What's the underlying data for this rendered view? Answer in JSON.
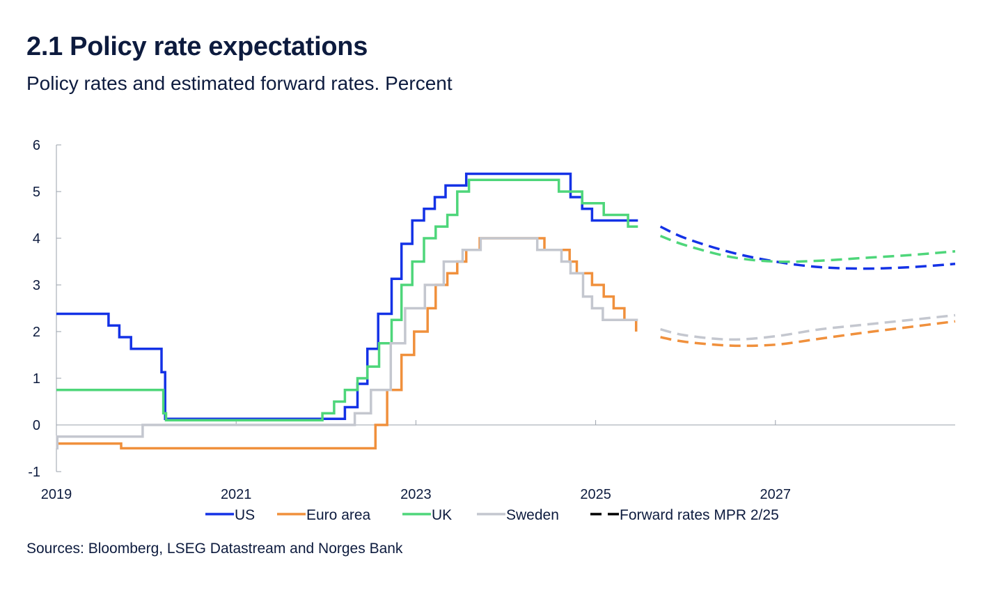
{
  "title": "2.1 Policy rate expectations",
  "subtitle": "Policy rates and estimated forward rates. Percent",
  "source": "Sources: Bloomberg, LSEG  Datastream and Norges Bank",
  "chart_data": {
    "type": "line",
    "ylim": [
      -1,
      6
    ],
    "xlim": [
      2019.0,
      2029.0
    ],
    "y_ticks": [
      "-1",
      "0",
      "1",
      "2",
      "3",
      "4",
      "5",
      "6"
    ],
    "x_ticks": [
      {
        "label": "2019",
        "value": 2019
      },
      {
        "label": "2021",
        "value": 2021
      },
      {
        "label": "2023",
        "value": 2023
      },
      {
        "label": "2025",
        "value": 2025
      },
      {
        "label": "2027",
        "value": 2027
      }
    ],
    "series": [
      {
        "name": "US",
        "color": "#1432e6",
        "style": "step",
        "points": [
          [
            2019.0,
            2.38
          ],
          [
            2019.58,
            2.38
          ],
          [
            2019.58,
            2.13
          ],
          [
            2019.7,
            2.13
          ],
          [
            2019.7,
            1.88
          ],
          [
            2019.83,
            1.88
          ],
          [
            2019.83,
            1.63
          ],
          [
            2020.17,
            1.63
          ],
          [
            2020.17,
            1.13
          ],
          [
            2020.21,
            1.13
          ],
          [
            2020.21,
            0.13
          ],
          [
            2022.21,
            0.13
          ],
          [
            2022.21,
            0.38
          ],
          [
            2022.35,
            0.38
          ],
          [
            2022.35,
            0.88
          ],
          [
            2022.46,
            0.88
          ],
          [
            2022.46,
            1.63
          ],
          [
            2022.58,
            1.63
          ],
          [
            2022.58,
            2.38
          ],
          [
            2022.73,
            2.38
          ],
          [
            2022.73,
            3.13
          ],
          [
            2022.84,
            3.13
          ],
          [
            2022.84,
            3.88
          ],
          [
            2022.96,
            3.88
          ],
          [
            2022.96,
            4.38
          ],
          [
            2023.09,
            4.38
          ],
          [
            2023.09,
            4.63
          ],
          [
            2023.21,
            4.63
          ],
          [
            2023.21,
            4.88
          ],
          [
            2023.33,
            4.88
          ],
          [
            2023.33,
            5.13
          ],
          [
            2023.56,
            5.13
          ],
          [
            2023.56,
            5.38
          ],
          [
            2024.72,
            5.38
          ],
          [
            2024.72,
            4.88
          ],
          [
            2024.85,
            4.88
          ],
          [
            2024.85,
            4.63
          ],
          [
            2024.96,
            4.63
          ],
          [
            2024.96,
            4.38
          ],
          [
            2025.47,
            4.38
          ]
        ]
      },
      {
        "name": "Euro area",
        "color": "#f0903c",
        "style": "step",
        "points": [
          [
            2019.0,
            -0.4
          ],
          [
            2019.72,
            -0.4
          ],
          [
            2019.72,
            -0.5
          ],
          [
            2022.55,
            -0.5
          ],
          [
            2022.55,
            0.0
          ],
          [
            2022.68,
            0.0
          ],
          [
            2022.68,
            0.75
          ],
          [
            2022.84,
            0.75
          ],
          [
            2022.84,
            1.5
          ],
          [
            2022.98,
            1.5
          ],
          [
            2022.98,
            2.0
          ],
          [
            2023.13,
            2.0
          ],
          [
            2023.13,
            2.5
          ],
          [
            2023.22,
            2.5
          ],
          [
            2023.22,
            3.0
          ],
          [
            2023.35,
            3.0
          ],
          [
            2023.35,
            3.25
          ],
          [
            2023.46,
            3.25
          ],
          [
            2023.46,
            3.5
          ],
          [
            2023.56,
            3.5
          ],
          [
            2023.56,
            3.75
          ],
          [
            2023.71,
            3.75
          ],
          [
            2023.71,
            4.0
          ],
          [
            2024.43,
            4.0
          ],
          [
            2024.43,
            3.75
          ],
          [
            2024.71,
            3.75
          ],
          [
            2024.71,
            3.5
          ],
          [
            2024.79,
            3.5
          ],
          [
            2024.79,
            3.25
          ],
          [
            2024.96,
            3.25
          ],
          [
            2024.96,
            3.0
          ],
          [
            2025.09,
            3.0
          ],
          [
            2025.09,
            2.75
          ],
          [
            2025.2,
            2.75
          ],
          [
            2025.2,
            2.5
          ],
          [
            2025.32,
            2.5
          ],
          [
            2025.32,
            2.25
          ],
          [
            2025.45,
            2.25
          ],
          [
            2025.45,
            2.0
          ]
        ]
      },
      {
        "name": "UK",
        "color": "#4ed67a",
        "style": "step",
        "points": [
          [
            2019.0,
            0.75
          ],
          [
            2020.19,
            0.75
          ],
          [
            2020.19,
            0.25
          ],
          [
            2020.22,
            0.25
          ],
          [
            2020.22,
            0.1
          ],
          [
            2021.96,
            0.1
          ],
          [
            2021.96,
            0.25
          ],
          [
            2022.09,
            0.25
          ],
          [
            2022.09,
            0.5
          ],
          [
            2022.21,
            0.5
          ],
          [
            2022.21,
            0.75
          ],
          [
            2022.35,
            0.75
          ],
          [
            2022.35,
            1.0
          ],
          [
            2022.46,
            1.0
          ],
          [
            2022.46,
            1.25
          ],
          [
            2022.59,
            1.25
          ],
          [
            2022.59,
            1.75
          ],
          [
            2022.73,
            1.75
          ],
          [
            2022.73,
            2.25
          ],
          [
            2022.84,
            2.25
          ],
          [
            2022.84,
            3.0
          ],
          [
            2022.96,
            3.0
          ],
          [
            2022.96,
            3.5
          ],
          [
            2023.09,
            3.5
          ],
          [
            2023.09,
            4.0
          ],
          [
            2023.22,
            4.0
          ],
          [
            2023.22,
            4.25
          ],
          [
            2023.35,
            4.25
          ],
          [
            2023.35,
            4.5
          ],
          [
            2023.46,
            4.5
          ],
          [
            2023.46,
            5.0
          ],
          [
            2023.59,
            5.0
          ],
          [
            2023.59,
            5.25
          ],
          [
            2024.59,
            5.25
          ],
          [
            2024.59,
            5.0
          ],
          [
            2024.85,
            5.0
          ],
          [
            2024.85,
            4.75
          ],
          [
            2025.09,
            4.75
          ],
          [
            2025.09,
            4.5
          ],
          [
            2025.36,
            4.5
          ],
          [
            2025.36,
            4.25
          ],
          [
            2025.47,
            4.25
          ]
        ]
      },
      {
        "name": "Sweden",
        "color": "#c4c7cf",
        "style": "step",
        "points": [
          [
            2019.0,
            -0.5
          ],
          [
            2019.01,
            -0.5
          ],
          [
            2019.01,
            -0.25
          ],
          [
            2019.96,
            -0.25
          ],
          [
            2019.96,
            0.0
          ],
          [
            2022.32,
            0.0
          ],
          [
            2022.32,
            0.25
          ],
          [
            2022.5,
            0.25
          ],
          [
            2022.5,
            0.75
          ],
          [
            2022.72,
            0.75
          ],
          [
            2022.72,
            1.75
          ],
          [
            2022.88,
            1.75
          ],
          [
            2022.88,
            2.5
          ],
          [
            2023.1,
            2.5
          ],
          [
            2023.1,
            3.0
          ],
          [
            2023.31,
            3.0
          ],
          [
            2023.31,
            3.5
          ],
          [
            2023.52,
            3.5
          ],
          [
            2023.52,
            3.75
          ],
          [
            2023.72,
            3.75
          ],
          [
            2023.72,
            4.0
          ],
          [
            2024.35,
            4.0
          ],
          [
            2024.35,
            3.75
          ],
          [
            2024.62,
            3.75
          ],
          [
            2024.62,
            3.5
          ],
          [
            2024.72,
            3.5
          ],
          [
            2024.72,
            3.25
          ],
          [
            2024.86,
            3.25
          ],
          [
            2024.86,
            2.75
          ],
          [
            2024.96,
            2.75
          ],
          [
            2024.96,
            2.5
          ],
          [
            2025.08,
            2.5
          ],
          [
            2025.08,
            2.25
          ],
          [
            2025.47,
            2.25
          ]
        ]
      }
    ],
    "forward_series": [
      {
        "name": "US forward",
        "color": "#1432e6",
        "points": [
          [
            2025.72,
            4.25
          ],
          [
            2026.0,
            4.0
          ],
          [
            2026.5,
            3.7
          ],
          [
            2027.0,
            3.5
          ],
          [
            2027.5,
            3.38
          ],
          [
            2028.0,
            3.35
          ],
          [
            2028.5,
            3.38
          ],
          [
            2029.0,
            3.45
          ]
        ]
      },
      {
        "name": "UK forward",
        "color": "#4ed67a",
        "points": [
          [
            2025.72,
            4.05
          ],
          [
            2026.0,
            3.85
          ],
          [
            2026.5,
            3.6
          ],
          [
            2027.0,
            3.5
          ],
          [
            2027.5,
            3.52
          ],
          [
            2028.0,
            3.58
          ],
          [
            2028.5,
            3.64
          ],
          [
            2029.0,
            3.72
          ]
        ]
      },
      {
        "name": "Sweden forward",
        "color": "#c4c7cf",
        "points": [
          [
            2025.72,
            2.05
          ],
          [
            2026.0,
            1.92
          ],
          [
            2026.5,
            1.83
          ],
          [
            2027.0,
            1.9
          ],
          [
            2027.5,
            2.05
          ],
          [
            2028.0,
            2.15
          ],
          [
            2028.5,
            2.25
          ],
          [
            2029.0,
            2.35
          ]
        ]
      },
      {
        "name": "Euro area forward",
        "color": "#f0903c",
        "points": [
          [
            2025.72,
            1.88
          ],
          [
            2026.0,
            1.78
          ],
          [
            2026.5,
            1.7
          ],
          [
            2027.0,
            1.72
          ],
          [
            2027.5,
            1.85
          ],
          [
            2028.0,
            1.98
          ],
          [
            2028.5,
            2.1
          ],
          [
            2029.0,
            2.22
          ]
        ]
      }
    ],
    "legend": [
      {
        "label": "US",
        "color": "#1432e6",
        "dashed": false
      },
      {
        "label": "Euro area",
        "color": "#f0903c",
        "dashed": false
      },
      {
        "label": "UK",
        "color": "#4ed67a",
        "dashed": false
      },
      {
        "label": "Sweden",
        "color": "#c4c7cf",
        "dashed": false
      },
      {
        "label": "Forward rates MPR 2/25",
        "color": "#000000",
        "dashed": true
      }
    ]
  }
}
